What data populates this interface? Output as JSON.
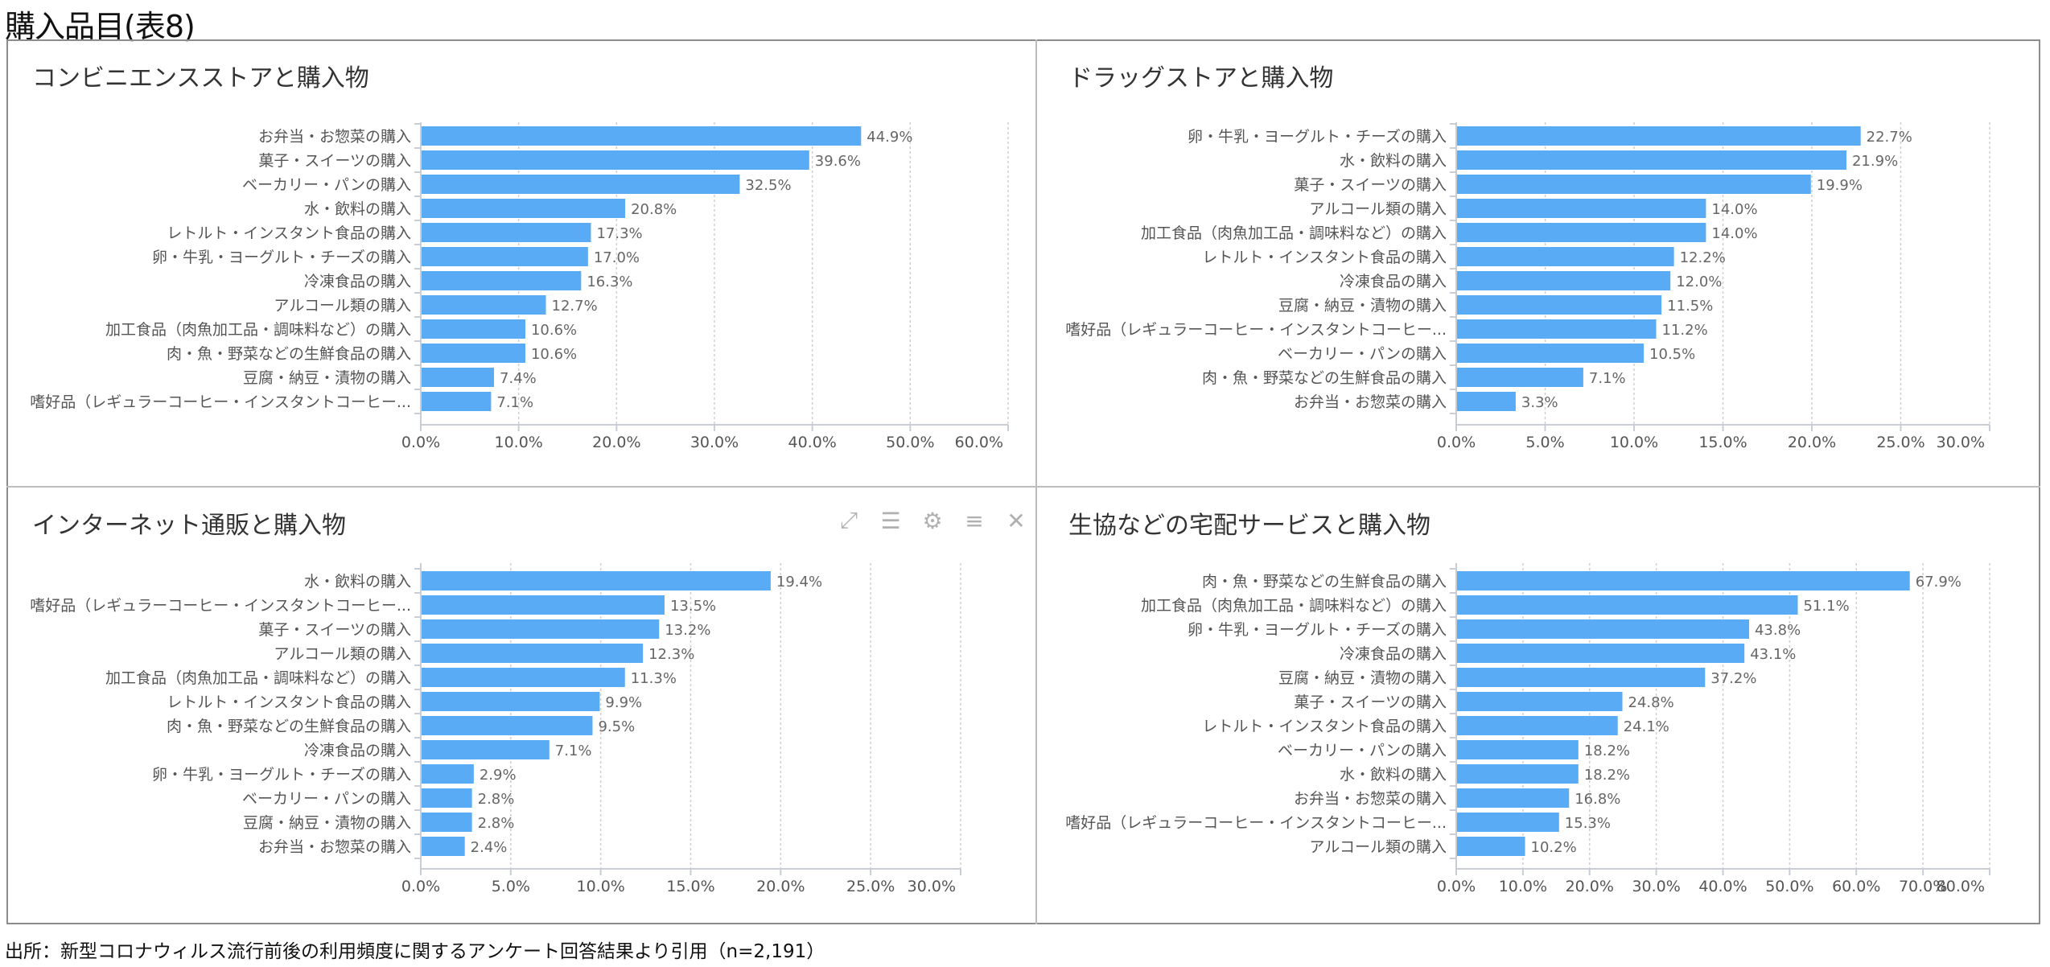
{
  "title": "購入品目(表8)",
  "footer": "出所：新型コロナウィルス流行前後の利用頻度に関するアンケート回答結果より引用（n=2,191）",
  "bar_color": "#5aabf5",
  "toolbar_icons": [
    "expand-icon",
    "data-view-icon",
    "gear-icon",
    "list-icon",
    "close-icon"
  ],
  "chart_data": [
    {
      "type": "bar",
      "orientation": "horizontal",
      "title": "コンビニエンスストアと購入物",
      "categories": [
        "お弁当・お惣菜の購入",
        "菓子・スイーツの購入",
        "ベーカリー・パンの購入",
        "水・飲料の購入",
        "レトルト・インスタント食品の購入",
        "卵・牛乳・ヨーグルト・チーズの購入",
        "冷凍食品の購入",
        "アルコール類の購入",
        "加工食品（肉魚加工品・調味料など）の購入",
        "肉・魚・野菜などの生鮮食品の購入",
        "豆腐・納豆・漬物の購入",
        "嗜好品（レギュラーコーヒー・インスタントコーヒー..."
      ],
      "values": [
        44.9,
        39.6,
        32.5,
        20.8,
        17.3,
        17.0,
        16.3,
        12.7,
        10.6,
        10.6,
        7.4,
        7.1
      ],
      "xlim": [
        0,
        60
      ],
      "ticks": [
        "0.0%",
        "10.0%",
        "20.0%",
        "30.0%",
        "40.0%",
        "50.0%",
        "60.0%"
      ],
      "grid": true
    },
    {
      "type": "bar",
      "orientation": "horizontal",
      "title": "ドラッグストアと購入物",
      "categories": [
        "卵・牛乳・ヨーグルト・チーズの購入",
        "水・飲料の購入",
        "菓子・スイーツの購入",
        "アルコール類の購入",
        "加工食品（肉魚加工品・調味料など）の購入",
        "レトルト・インスタント食品の購入",
        "冷凍食品の購入",
        "豆腐・納豆・漬物の購入",
        "嗜好品（レギュラーコーヒー・インスタントコーヒー...",
        "ベーカリー・パンの購入",
        "肉・魚・野菜などの生鮮食品の購入",
        "お弁当・お惣菜の購入"
      ],
      "values": [
        22.7,
        21.9,
        19.9,
        14.0,
        14.0,
        12.2,
        12.0,
        11.5,
        11.2,
        10.5,
        7.1,
        3.3
      ],
      "xlim": [
        0,
        30
      ],
      "ticks": [
        "0.0%",
        "5.0%",
        "10.0%",
        "15.0%",
        "20.0%",
        "25.0%",
        "30.0%"
      ],
      "grid": true
    },
    {
      "type": "bar",
      "orientation": "horizontal",
      "title": "インターネット通販と購入物",
      "categories": [
        "水・飲料の購入",
        "嗜好品（レギュラーコーヒー・インスタントコーヒー...",
        "菓子・スイーツの購入",
        "アルコール類の購入",
        "加工食品（肉魚加工品・調味料など）の購入",
        "レトルト・インスタント食品の購入",
        "肉・魚・野菜などの生鮮食品の購入",
        "冷凍食品の購入",
        "卵・牛乳・ヨーグルト・チーズの購入",
        "ベーカリー・パンの購入",
        "豆腐・納豆・漬物の購入",
        "お弁当・お惣菜の購入"
      ],
      "values": [
        19.4,
        13.5,
        13.2,
        12.3,
        11.3,
        9.9,
        9.5,
        7.1,
        2.9,
        2.8,
        2.8,
        2.4
      ],
      "xlim": [
        0,
        30
      ],
      "ticks": [
        "0.0%",
        "5.0%",
        "10.0%",
        "15.0%",
        "20.0%",
        "25.0%",
        "30.0%"
      ],
      "grid": true
    },
    {
      "type": "bar",
      "orientation": "horizontal",
      "title": "生協などの宅配サービスと購入物",
      "categories": [
        "肉・魚・野菜などの生鮮食品の購入",
        "加工食品（肉魚加工品・調味料など）の購入",
        "卵・牛乳・ヨーグルト・チーズの購入",
        "冷凍食品の購入",
        "豆腐・納豆・漬物の購入",
        "菓子・スイーツの購入",
        "レトルト・インスタント食品の購入",
        "ベーカリー・パンの購入",
        "水・飲料の購入",
        "お弁当・お惣菜の購入",
        "嗜好品（レギュラーコーヒー・インスタントコーヒー...",
        "アルコール類の購入"
      ],
      "values": [
        67.9,
        51.1,
        43.8,
        43.1,
        37.2,
        24.8,
        24.1,
        18.2,
        18.2,
        16.8,
        15.3,
        10.2
      ],
      "xlim": [
        0,
        80
      ],
      "ticks": [
        "0.0%",
        "10.0%",
        "20.0%",
        "30.0%",
        "40.0%",
        "50.0%",
        "60.0%",
        "70.0%",
        "80.0%"
      ],
      "grid": true
    }
  ]
}
